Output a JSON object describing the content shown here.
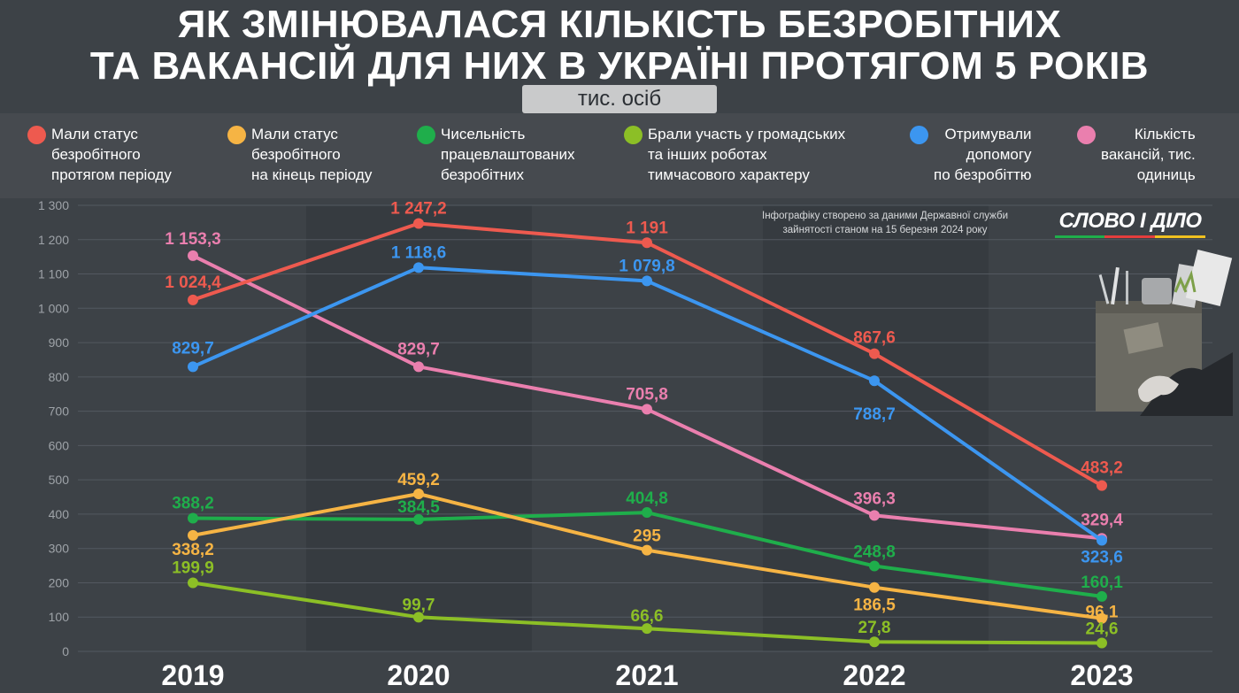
{
  "title": {
    "line1": "ЯК ЗМІНЮВАЛАСЯ КІЛЬКІСТЬ БЕЗРОБІТНИХ",
    "line2": "ТА ВАКАНСІЙ ДЛЯ НИХ В УКРАЇНІ ПРОТЯГОМ 5 РОКІВ"
  },
  "units": "тис. осіб",
  "legend": [
    {
      "lines": [
        "Мали статус",
        "безробітного",
        "протягом періоду"
      ],
      "color": "#ee5a4f"
    },
    {
      "lines": [
        "Мали статус",
        "безробітного",
        "на кінець періоду"
      ],
      "color": "#f6b444"
    },
    {
      "lines": [
        "Чисельність",
        "працевлаштованих",
        "безробітних"
      ],
      "color": "#1fae4b"
    },
    {
      "lines": [
        "Брали участь у громадських",
        "та інших роботах",
        "тимчасового характеру"
      ],
      "color": "#8cbf26"
    },
    {
      "lines": [
        "Отримували",
        "допомогу",
        "по безробіттю"
      ],
      "color": "#3c96f0"
    },
    {
      "lines": [
        "Кількість",
        "вакансій, тис.",
        "одиниць"
      ],
      "color": "#ea7fae"
    }
  ],
  "note": "Інфографіку створено за даними Державної служби зайнятості станом на 15 березня 2024 року",
  "logo": "СЛОВО І ДІЛО",
  "chart_data": {
    "type": "line",
    "x": [
      "2019",
      "2020",
      "2021",
      "2022",
      "2023"
    ],
    "ylim": [
      0,
      1300
    ],
    "yticks": [
      "0",
      "100",
      "200",
      "300",
      "400",
      "500",
      "600",
      "700",
      "800",
      "900",
      "1 000",
      "1 100",
      "1 200",
      "1 300"
    ],
    "grid": true,
    "series": [
      {
        "name": "Мали статус безробітного протягом періоду",
        "color": "#ee5a4f",
        "values": [
          1024.4,
          1247.2,
          1191,
          867.6,
          483.2
        ],
        "labels": [
          "1 024,4",
          "1 247,2",
          "1 191",
          "867,6",
          "483,2"
        ]
      },
      {
        "name": "Мали статус безробітного на кінець періоду",
        "color": "#f6b444",
        "values": [
          338.2,
          459.2,
          295,
          186.5,
          96.1
        ],
        "labels": [
          "338,2",
          "459,2",
          "295",
          "186,5",
          "96,1"
        ]
      },
      {
        "name": "Чисельність працевлаштованих безробітних",
        "color": "#1fae4b",
        "values": [
          388.2,
          384.5,
          404.8,
          248.8,
          160.1
        ],
        "labels": [
          "388,2",
          "384,5",
          "404,8",
          "248,8",
          "160,1"
        ]
      },
      {
        "name": "Брали участь у громадських та інших роботах тимчасового характеру",
        "color": "#8cbf26",
        "values": [
          199.9,
          99.7,
          66.6,
          27.8,
          24.6
        ],
        "labels": [
          "199,9",
          "99,7",
          "66,6",
          "27,8",
          "24,6"
        ]
      },
      {
        "name": "Отримували допомогу по безробіттю",
        "color": "#3c96f0",
        "values": [
          829.7,
          1118.6,
          1079.8,
          788.7,
          323.6
        ],
        "labels": [
          "829,7",
          "1 118,6",
          "1 079,8",
          "788,7",
          "323,6"
        ]
      },
      {
        "name": "Кількість вакансій, тис. одиниць",
        "color": "#ea7fae",
        "values": [
          1153.3,
          829.7,
          705.8,
          396.3,
          329.4
        ],
        "labels": [
          "1 153,3",
          "829,7",
          "705,8",
          "396,3",
          "329,4"
        ]
      }
    ]
  }
}
